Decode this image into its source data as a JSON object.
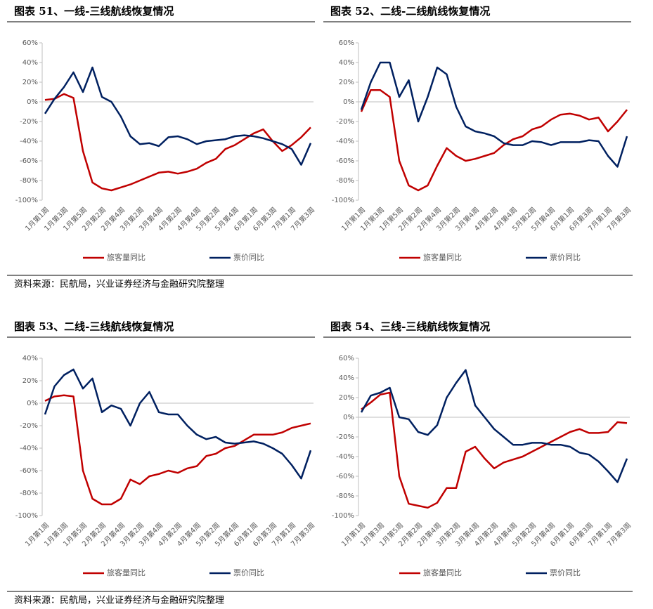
{
  "chart_data": [
    {
      "type": "line",
      "title": "图表 51、一线-三线航线恢复情况",
      "categories": [
        "1月第1周",
        null,
        "1月第3周",
        null,
        "1月第5周",
        null,
        "2月第2周",
        null,
        "2月第4周",
        null,
        "3月第2周",
        null,
        "3月第4周",
        null,
        "4月第2周",
        null,
        "4月第4周",
        null,
        "5月第2周",
        null,
        "5月第4周",
        null,
        "6月第1周",
        null,
        "6月第3周",
        null,
        "7月第1周",
        null,
        "7月第3周"
      ],
      "series": [
        {
          "name": "旅客量同比",
          "color": "#c00000",
          "values": [
            2,
            3,
            8,
            4,
            -50,
            -82,
            -88,
            -90,
            -87,
            -84,
            -80,
            -76,
            -72,
            -71,
            -73,
            -71,
            -68,
            -62,
            -58,
            -48,
            -44,
            -38,
            -32,
            -28,
            -40,
            -50,
            -44,
            -36,
            -26
          ]
        },
        {
          "name": "票价同比",
          "color": "#002060",
          "values": [
            -12,
            3,
            15,
            30,
            10,
            35,
            5,
            0,
            -15,
            -35,
            -43,
            -42,
            -45,
            -36,
            -35,
            -38,
            -43,
            -40,
            -39,
            -38,
            -35,
            -34,
            -35,
            -37,
            -40,
            -43,
            -48,
            -64,
            -42
          ]
        }
      ],
      "ylim": [
        -100,
        60
      ],
      "yticks": [
        {
          "value": -100,
          "label": "-100%"
        },
        {
          "value": -80,
          "label": "-80%"
        },
        {
          "value": -60,
          "label": "-60%"
        },
        {
          "value": -40,
          "label": "-40%"
        },
        {
          "value": -20,
          "label": "-20%"
        },
        {
          "value": 0,
          "label": "0%"
        },
        {
          "value": 20,
          "label": "20%"
        },
        {
          "value": 40,
          "label": "40%"
        },
        {
          "value": 60,
          "label": "60%"
        }
      ],
      "legend": "bottom"
    },
    {
      "type": "line",
      "title": "图表 52、二线-二线航线恢复情况",
      "categories": [
        "1月第1周",
        null,
        "1月第3周",
        null,
        "1月第5周",
        null,
        "2月第2周",
        null,
        "2月第4周",
        null,
        "3月第2周",
        null,
        "3月第4周",
        null,
        "4月第2周",
        null,
        "4月第4周",
        null,
        "5月第2周",
        null,
        "5月第4周",
        null,
        "6月第1周",
        null,
        "6月第3周",
        null,
        "7月第1周",
        null,
        "7月第3周"
      ],
      "series": [
        {
          "name": "旅客量同比",
          "color": "#c00000",
          "values": [
            -10,
            12,
            12,
            5,
            -60,
            -85,
            -90,
            -85,
            -65,
            -47,
            -55,
            -60,
            -58,
            -55,
            -52,
            -44,
            -38,
            -35,
            -28,
            -25,
            -18,
            -13,
            -12,
            -14,
            -18,
            -16,
            -30,
            -20,
            -8
          ]
        },
        {
          "name": "票价同比",
          "color": "#002060",
          "values": [
            -8,
            20,
            40,
            40,
            5,
            22,
            -20,
            5,
            35,
            28,
            -5,
            -25,
            -30,
            -32,
            -35,
            -42,
            -44,
            -44,
            -40,
            -41,
            -44,
            -41,
            -41,
            -41,
            -39,
            -40,
            -55,
            -66,
            -35
          ]
        }
      ],
      "ylim": [
        -100,
        60
      ],
      "yticks": [
        {
          "value": -100,
          "label": "-100%"
        },
        {
          "value": -80,
          "label": "-80%"
        },
        {
          "value": -60,
          "label": "-60%"
        },
        {
          "value": -40,
          "label": "-40%"
        },
        {
          "value": -20,
          "label": "-20%"
        },
        {
          "value": 0,
          "label": "0%"
        },
        {
          "value": 20,
          "label": "20%"
        },
        {
          "value": 40,
          "label": "40%"
        },
        {
          "value": 60,
          "label": "60%"
        }
      ],
      "legend": "bottom"
    },
    {
      "type": "line",
      "title": "图表 53、二线-三线航线恢复情况",
      "categories": [
        "1月第1周",
        null,
        "1月第3周",
        null,
        "1月第5周",
        null,
        "2月第2周",
        null,
        "2月第4周",
        null,
        "3月第2周",
        null,
        "3月第4周",
        null,
        "4月第2周",
        null,
        "4月第4周",
        null,
        "5月第2周",
        null,
        "5月第4周",
        null,
        "6月第1周",
        null,
        "6月第3周",
        null,
        "7月第1周",
        null,
        "7月第3周"
      ],
      "series": [
        {
          "name": "旅客量同比",
          "color": "#c00000",
          "values": [
            2,
            6,
            7,
            6,
            -60,
            -85,
            -90,
            -90,
            -85,
            -68,
            -72,
            -65,
            -63,
            -60,
            -62,
            -58,
            -56,
            -47,
            -45,
            -40,
            -38,
            -33,
            -28,
            -28,
            -28,
            -26,
            -22,
            -20,
            -18
          ]
        },
        {
          "name": "票价同比",
          "color": "#002060",
          "values": [
            -10,
            15,
            25,
            30,
            13,
            22,
            -8,
            -2,
            -5,
            -20,
            0,
            10,
            -8,
            -10,
            -10,
            -20,
            -28,
            -32,
            -30,
            -35,
            -36,
            -35,
            -34,
            -36,
            -40,
            -45,
            -55,
            -67,
            -42
          ]
        }
      ],
      "ylim": [
        -100,
        40
      ],
      "yticks": [
        {
          "value": -100,
          "label": "-100%"
        },
        {
          "value": -80,
          "label": "-80%"
        },
        {
          "value": -60,
          "label": "-60%"
        },
        {
          "value": -40,
          "label": "-40%"
        },
        {
          "value": -20,
          "label": "-20%"
        },
        {
          "value": 0,
          "label": "0%"
        },
        {
          "value": 20,
          "label": "20%"
        },
        {
          "value": 40,
          "label": "40%"
        }
      ],
      "legend": "bottom"
    },
    {
      "type": "line",
      "title": "图表 54、三线-三线航线恢复情况",
      "categories": [
        "1月第1周",
        null,
        "1月第3周",
        null,
        "1月第5周",
        null,
        "2月第2周",
        null,
        "2月第4周",
        null,
        "3月第2周",
        null,
        "3月第4周",
        null,
        "4月第2周",
        null,
        "4月第4周",
        null,
        "5月第2周",
        null,
        "5月第4周",
        null,
        "6月第1周",
        null,
        "6月第3周",
        null,
        "7月第1周",
        null,
        "7月第3周"
      ],
      "series": [
        {
          "name": "旅客量同比",
          "color": "#c00000",
          "values": [
            8,
            15,
            23,
            25,
            -60,
            -88,
            -90,
            -92,
            -87,
            -72,
            -72,
            -35,
            -30,
            -42,
            -52,
            -46,
            -43,
            -40,
            -35,
            -30,
            -25,
            -20,
            -15,
            -12,
            -16,
            -16,
            -15,
            -5,
            -6
          ]
        },
        {
          "name": "票价同比",
          "color": "#002060",
          "values": [
            5,
            22,
            25,
            30,
            0,
            -2,
            -15,
            -18,
            -8,
            20,
            35,
            48,
            12,
            0,
            -12,
            -20,
            -28,
            -28,
            -26,
            -26,
            -28,
            -28,
            -30,
            -36,
            -38,
            -45,
            -55,
            -66,
            -42
          ]
        }
      ],
      "ylim": [
        -100,
        60
      ],
      "yticks": [
        {
          "value": -100,
          "label": "-100%"
        },
        {
          "value": -80,
          "label": "-80%"
        },
        {
          "value": -60,
          "label": "-60%"
        },
        {
          "value": -40,
          "label": "-40%"
        },
        {
          "value": -20,
          "label": "-20%"
        },
        {
          "value": 0,
          "label": "0%"
        },
        {
          "value": 20,
          "label": "20%"
        },
        {
          "value": 40,
          "label": "40%"
        },
        {
          "value": 60,
          "label": "60%"
        }
      ],
      "legend": "bottom"
    }
  ],
  "sources": [
    "资料来源：民航局，兴业证券经济与金融研究院整理",
    "资料来源：民航局，兴业证券经济与金融研究院整理"
  ]
}
